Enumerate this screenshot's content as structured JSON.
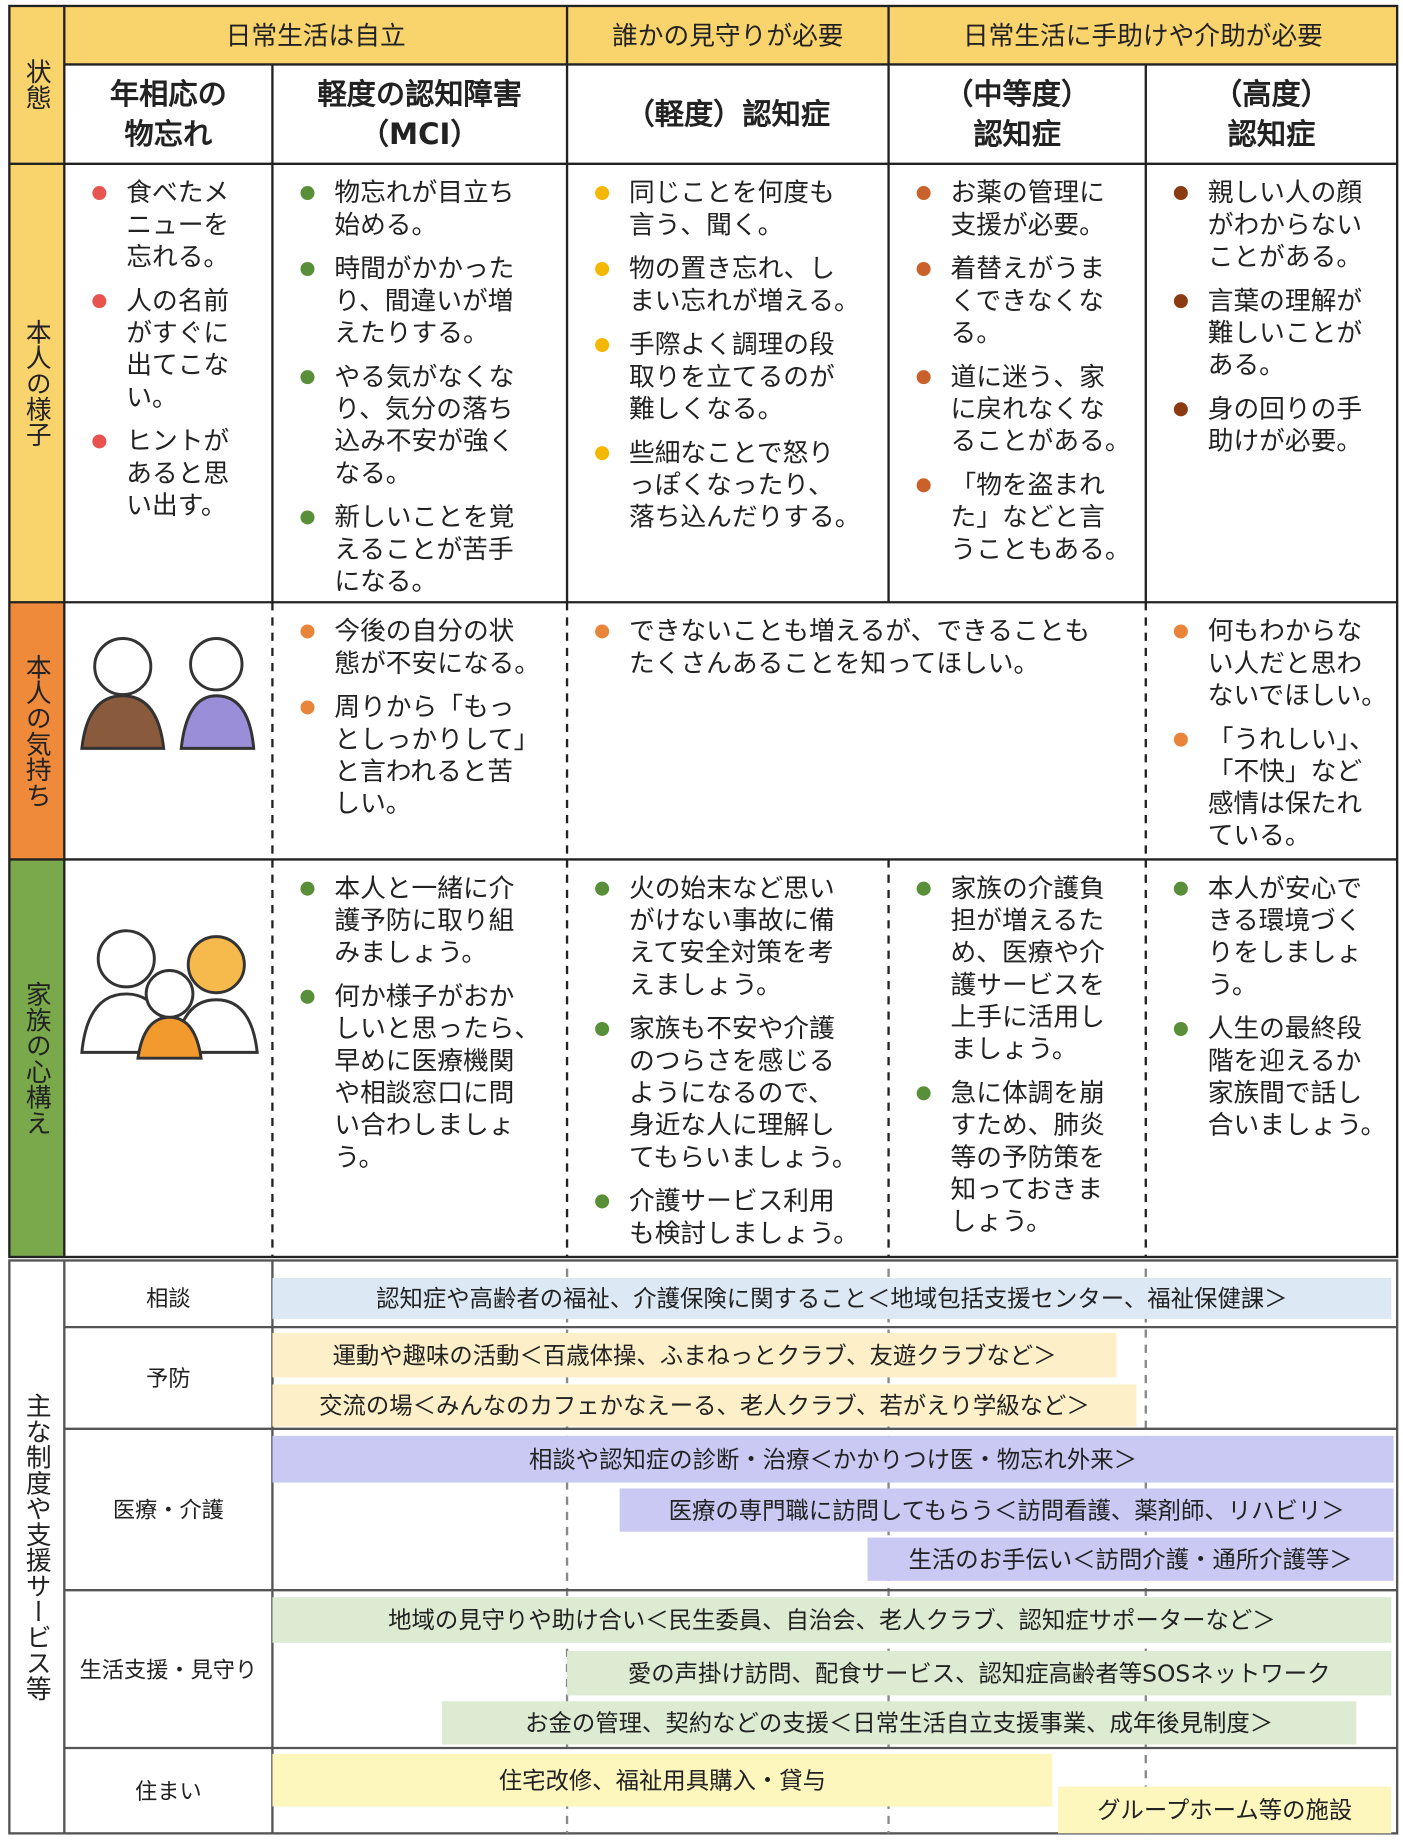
{
  "state_label": "状態",
  "groups": [
    "日常生活は自立",
    "誰かの見守りが必要",
    "日常生活に手助けや介助が必要"
  ],
  "stages": [
    [
      "年相応の",
      "物忘れ"
    ],
    [
      "軽度の認知障害",
      "（MCI）"
    ],
    [
      "（軽度）認知症"
    ],
    [
      "（中等度）",
      "認知症"
    ],
    [
      "（高度）",
      "認知症"
    ]
  ],
  "rows": [
    {
      "label": "本人の様子",
      "cells": [
        [
          "食べたメニューを忘れる。",
          "人の名前がすぐに出てこない。",
          "ヒントがあると思い出す。"
        ],
        [
          "物忘れが目立ち始める。",
          "時間がかかったり、間違いが増えたりする。",
          "やる気がなくなり、気分の落ち込み不安が強くなる。",
          "新しいことを覚えることが苦手になる。"
        ],
        [
          "同じことを何度も言う、聞く。",
          "物の置き忘れ、しまい忘れが増える。",
          "手際よく調理の段取りを立てるのが難しくなる。",
          "些細なことで怒りっぽくなったり、落ち込んだりする。"
        ],
        [
          "お薬の管理に支援が必要。",
          "着替えがうまくできなくなる。",
          "道に迷う、家に戻れなくなることがある。",
          "「物を盗まれた」などと言うこともある。"
        ],
        [
          "親しい人の顔がわからないことがある。",
          "言葉の理解が難しいことがある。",
          "身の回りの手助けが必要。"
        ]
      ]
    },
    {
      "label": "本人の気持ち",
      "cells": [
        [
          "今後の自分の状態が不安になる。",
          "周りから「もっとしっかりして」と言われると苦しい。"
        ],
        [
          "できないことも増えるが、できることもたくさんあることを知ってほしい。"
        ],
        [
          "何もわからない人だと思わないでほしい。",
          "「うれしい」、「不快」など感情は保たれている。"
        ]
      ]
    },
    {
      "label": "家族の心構え",
      "cells": [
        [
          "本人と一緒に介護予防に取り組みましょう。",
          "何か様子がおかしいと思ったら、早めに医療機関や相談窓口に問い合わしましょう。"
        ],
        [
          "火の始末など思いがけない事故に備えて安全対策を考えましょう。",
          "家族も不安や介護のつらさを感じるようになるので、身近な人に理解してもらいましょう。",
          "介護サービス利用も検討しましょう。"
        ],
        [
          "家族の介護負担が増えるため、医療や介護サービスを上手に活用しましょう。",
          "急に体調を崩すため、肺炎等の予防策を知っておきましょう。"
        ],
        [
          "本人が安心できる環境づくりをしましょう。",
          "人生の最終段階を迎えるか家族間で話し合いましょう。"
        ]
      ]
    }
  ],
  "services": {
    "label": "主な制度や支援サービス等",
    "categories": [
      {
        "name": "相談",
        "items": [
          "認知症や高齢者の福祉、介護保険に関すること＜地域包括支援センター、福祉保健課＞"
        ]
      },
      {
        "name": "予防",
        "items": [
          "運動や趣味の活動＜百歳体操、ふまねっとクラブ、友遊クラブなど＞",
          "交流の場＜みんなのカフェかなえーる、老人クラブ、若がえり学級など＞"
        ]
      },
      {
        "name": "医療・介護",
        "items": [
          "相談や認知症の診断・治療＜かかりつけ医・物忘れ外来＞",
          "医療の専門職に訪問してもらう＜訪問看護、薬剤師、リハビリ＞",
          "生活のお手伝い＜訪問介護・通所介護等＞"
        ]
      },
      {
        "name": "生活支援・見守り",
        "items": [
          "地域の見守りや助け合い＜民生委員、自治会、老人クラブ、認知症サポーターなど＞",
          "愛の声掛け訪問、配食サービス、認知症高齢者等SOSネットワーク",
          "お金の管理、契約などの支援＜日常生活自立支援事業、成年後見制度＞"
        ]
      },
      {
        "name": "住まい",
        "items": [
          "住宅改修、福祉用具購入・貸与",
          "グループホーム等の施設"
        ]
      }
    ]
  }
}
